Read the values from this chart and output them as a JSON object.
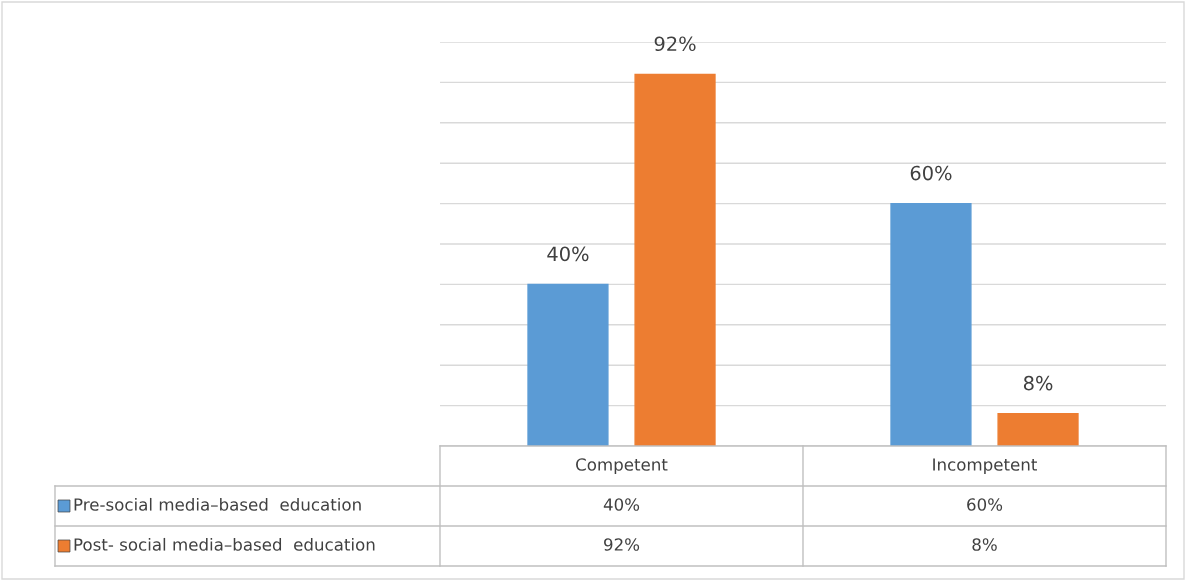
{
  "chart_data": {
    "type": "bar",
    "categories": [
      "Competent",
      "Incompetent"
    ],
    "series": [
      {
        "name": "Pre-social media–based  education",
        "color": "#5b9bd5",
        "values": [
          40,
          60
        ],
        "value_labels": [
          "40%",
          "60%"
        ]
      },
      {
        "name": "Post- social media–based  education",
        "color": "#ed7d31",
        "values": [
          92,
          8
        ],
        "value_labels": [
          "92%",
          "8%"
        ]
      }
    ],
    "ylim": [
      0,
      100
    ],
    "yticks": [
      {
        "value": 0,
        "label": null
      },
      {
        "value": 10,
        "label": null
      },
      {
        "value": 20,
        "label": null
      },
      {
        "value": 30,
        "label": null
      },
      {
        "value": 40,
        "label": null
      },
      {
        "value": 50,
        "label": null
      },
      {
        "value": 60,
        "label": null
      },
      {
        "value": 70,
        "label": null
      },
      {
        "value": 80,
        "label": null
      },
      {
        "value": 90,
        "label": null
      },
      {
        "value": 100,
        "label": null
      }
    ],
    "grid": "y",
    "tick_labels": "x",
    "legend": "bottom"
  }
}
